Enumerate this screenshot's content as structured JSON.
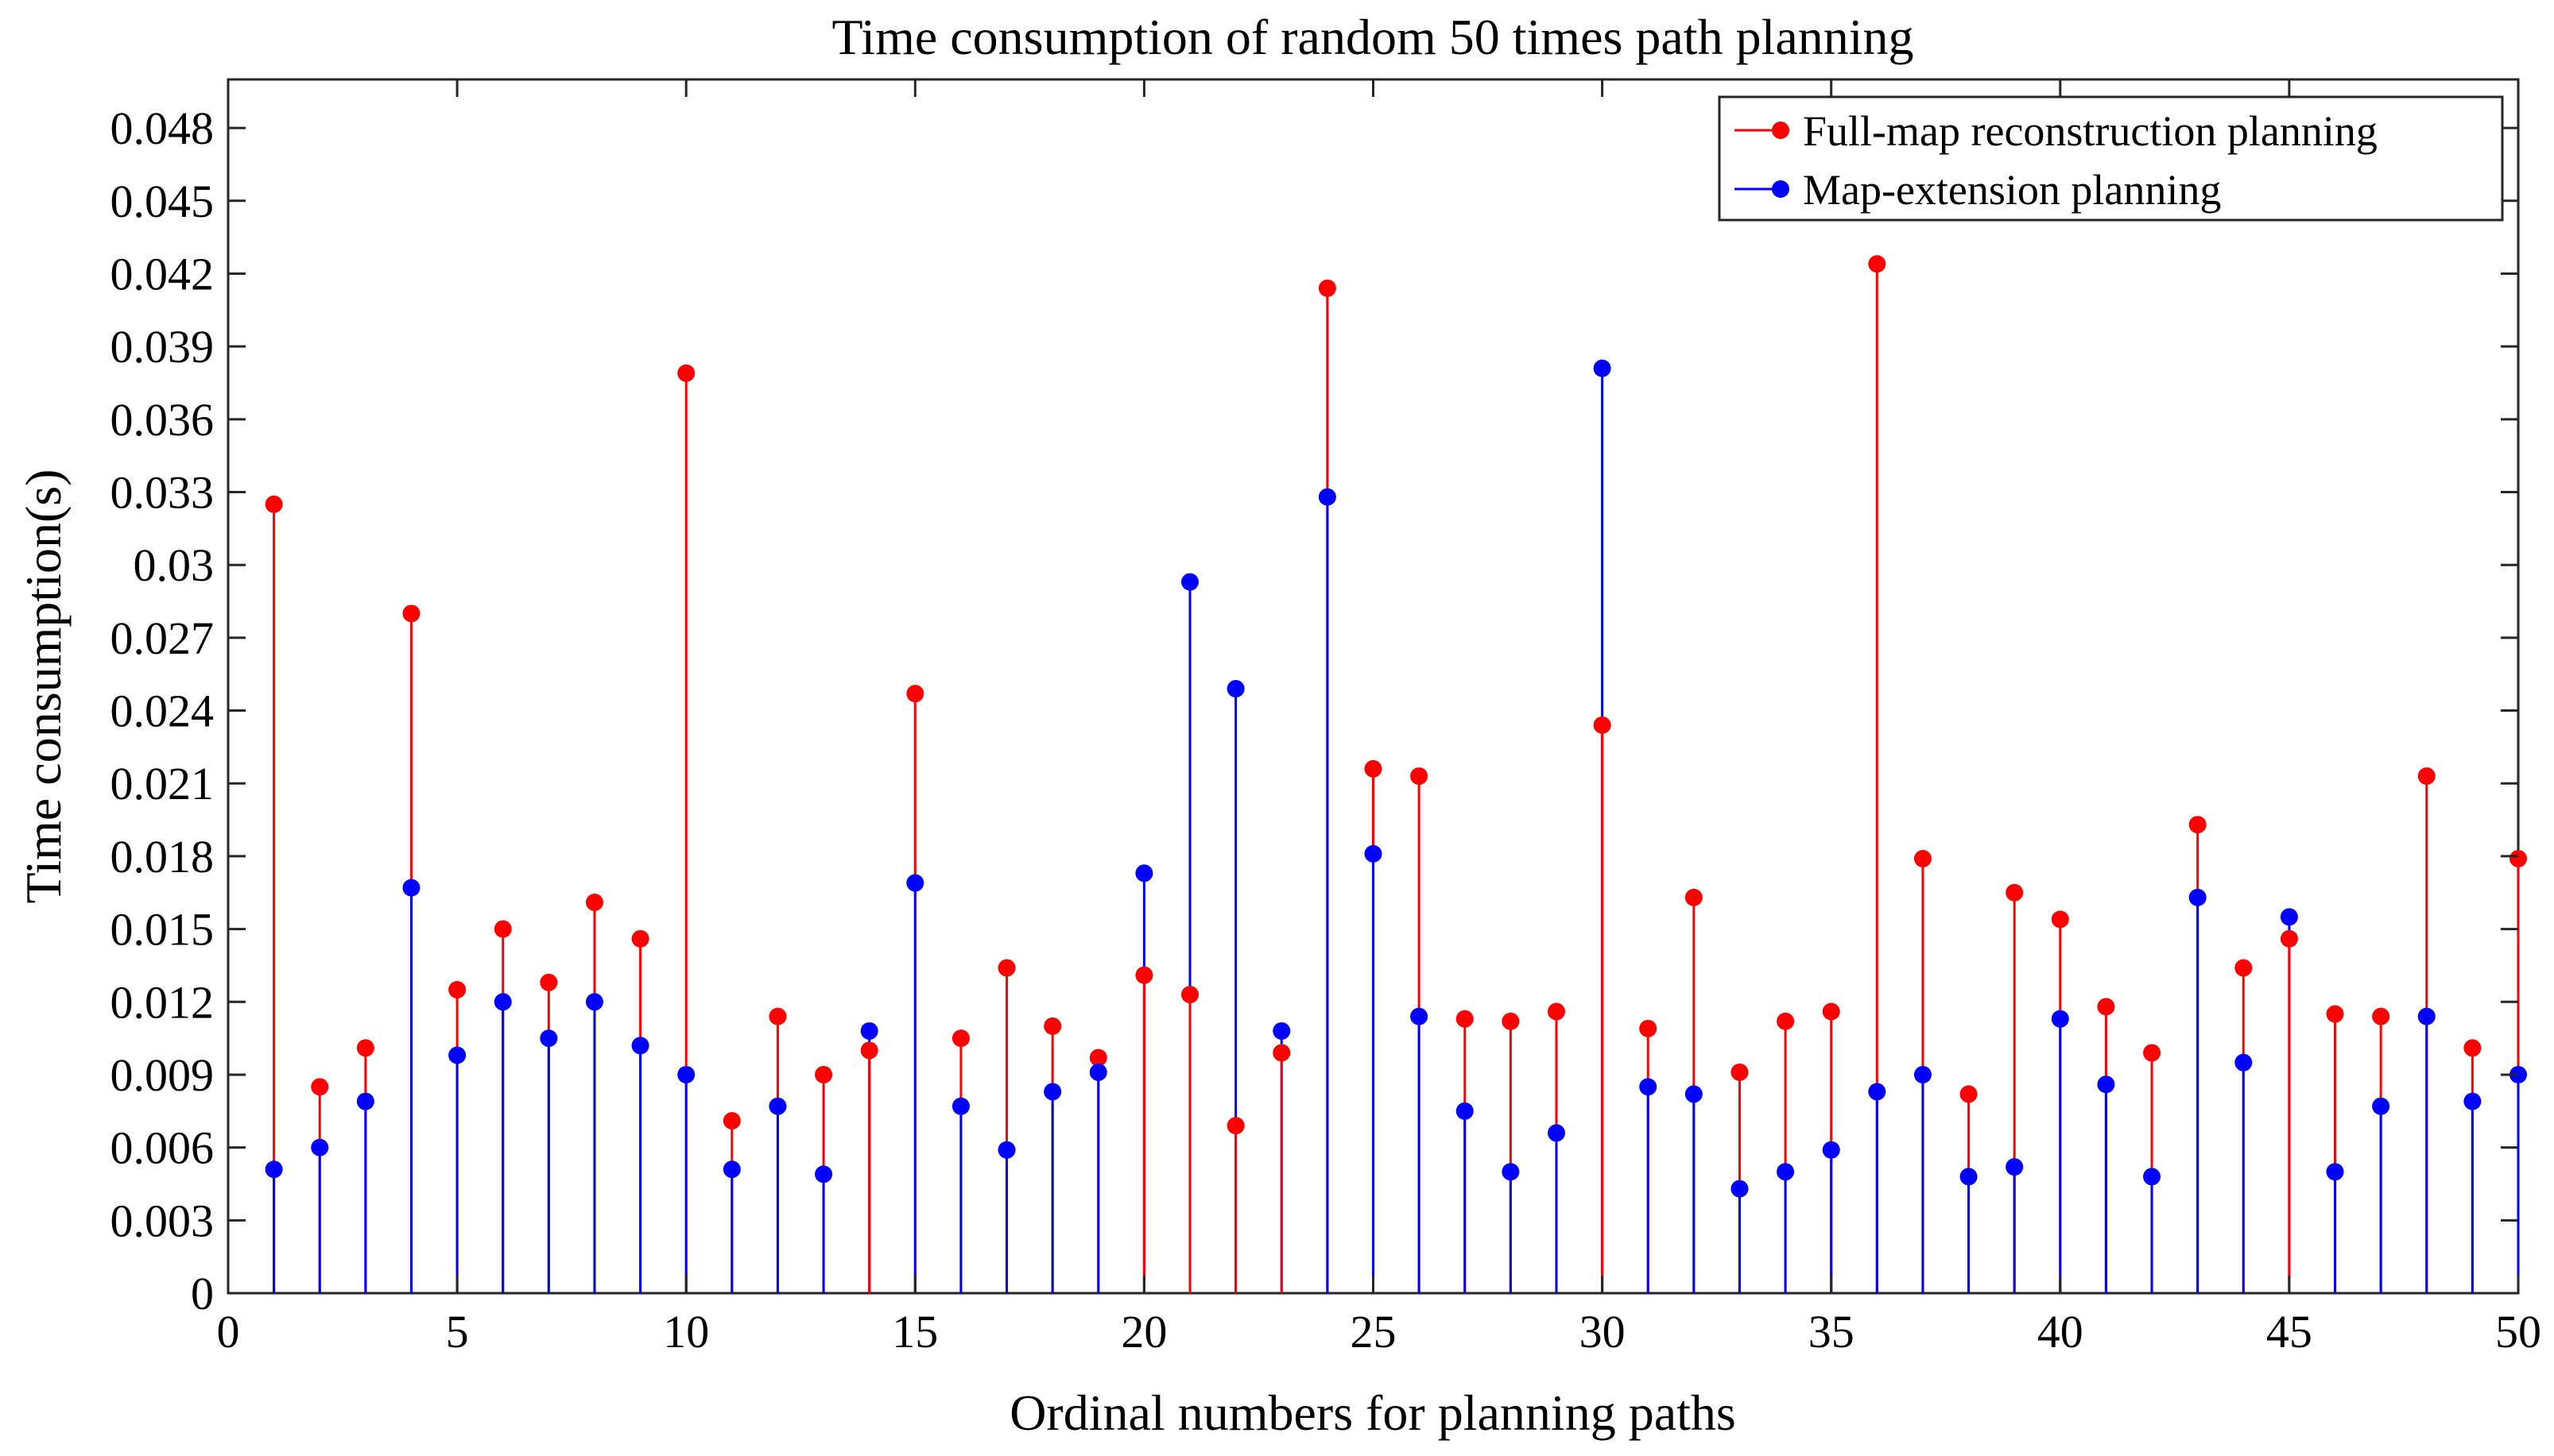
{
  "chart_data": {
    "type": "stem",
    "title": "Time consumption of random 50 times path planning",
    "xlabel": "Ordinal numbers for planning paths",
    "ylabel": "Time consumption(s)",
    "xlim": [
      0,
      50
    ],
    "ylim": [
      0,
      0.05
    ],
    "xticks": [
      0,
      5,
      10,
      15,
      20,
      25,
      30,
      35,
      40,
      45,
      50
    ],
    "yticks": [
      0,
      0.003,
      0.006,
      0.009,
      0.012,
      0.015,
      0.018,
      0.021,
      0.024,
      0.027,
      0.03,
      0.033,
      0.036,
      0.039,
      0.042,
      0.045,
      0.048
    ],
    "xtick_labels": [
      "0",
      "5",
      "10",
      "15",
      "20",
      "25",
      "30",
      "35",
      "40",
      "45",
      "50"
    ],
    "ytick_labels": [
      "0",
      "0.003",
      "0.006",
      "0.009",
      "0.012",
      "0.015",
      "0.018",
      "0.021",
      "0.024",
      "0.027",
      "0.03",
      "0.033",
      "0.036",
      "0.039",
      "0.042",
      "0.045",
      "0.048"
    ],
    "legend_position": "top-right",
    "x": [
      1,
      2,
      3,
      4,
      5,
      6,
      7,
      8,
      9,
      10,
      11,
      12,
      13,
      14,
      15,
      16,
      17,
      18,
      19,
      20,
      21,
      22,
      23,
      24,
      25,
      26,
      27,
      28,
      29,
      30,
      31,
      32,
      33,
      34,
      35,
      36,
      37,
      38,
      39,
      40,
      41,
      42,
      43,
      44,
      45,
      46,
      47,
      48,
      49,
      50
    ],
    "series": [
      {
        "name": "Full-map reconstruction planning",
        "color": "#ff0000",
        "values": [
          0.0325,
          0.0085,
          0.0101,
          0.028,
          0.0125,
          0.015,
          0.0128,
          0.0161,
          0.0146,
          0.0379,
          0.0071,
          0.0114,
          0.009,
          0.01,
          0.0247,
          0.0105,
          0.0134,
          0.011,
          0.0097,
          0.0131,
          0.0123,
          0.0069,
          0.0099,
          0.0414,
          0.0216,
          0.0213,
          0.0113,
          0.0112,
          0.0116,
          0.0234,
          0.0109,
          0.0163,
          0.0091,
          0.0112,
          0.0116,
          0.0424,
          0.0179,
          0.0082,
          0.0165,
          0.0154,
          0.0118,
          0.0099,
          0.0193,
          0.0134,
          0.0146,
          0.0115,
          0.0114,
          0.0213,
          0.0101,
          0.0179
        ]
      },
      {
        "name": "Map-extension planning",
        "color": "#0000ff",
        "values": [
          0.0051,
          0.006,
          0.0079,
          0.0167,
          0.0098,
          0.012,
          0.0105,
          0.012,
          0.0102,
          0.009,
          0.0051,
          0.0077,
          0.0049,
          0.0108,
          0.0169,
          0.0077,
          0.0059,
          0.0083,
          0.0091,
          0.0173,
          0.0293,
          0.0249,
          0.0108,
          0.0328,
          0.0181,
          0.0114,
          0.0075,
          0.005,
          0.0066,
          0.0381,
          0.0085,
          0.0082,
          0.0043,
          0.005,
          0.0059,
          0.0083,
          0.009,
          0.0048,
          0.0052,
          0.0113,
          0.0086,
          0.0048,
          0.0163,
          0.0095,
          0.0155,
          0.005,
          0.0077,
          0.0114,
          0.0079,
          0.009
        ]
      }
    ]
  }
}
